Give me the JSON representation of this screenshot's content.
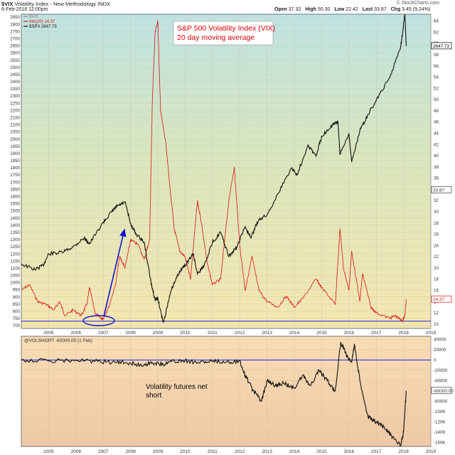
{
  "header": {
    "symbol": "$VIX",
    "title": "Volatility Index - New Methodology",
    "exchange": "INDX",
    "date": "6-Feb-2018 12:00pm",
    "brand": "© StockCharts.com",
    "ohlc": [
      {
        "label": "Open",
        "value": "37.32"
      },
      {
        "label": "High",
        "value": "50.30"
      },
      {
        "label": "Low",
        "value": "22.42"
      },
      {
        "label": "Last",
        "value": "33.87"
      },
      {
        "label": "Chg",
        "value": "3.45 (9.24%)"
      }
    ]
  },
  "chart_data": [
    {
      "type": "line",
      "title": "S&P 500 Volatility Index (VIX)",
      "subtitle": "20 day moving average",
      "legend": [
        {
          "text": "$VIX",
          "color": "#888888"
        },
        {
          "text": "MA(20) 14.37",
          "color": "#dd1111"
        },
        {
          "text": "$SPX 2647.73",
          "color": "#111111"
        }
      ],
      "x_ticks": [
        "2005",
        "2006",
        "2007",
        "2008",
        "2009",
        "2010",
        "2011",
        "2012",
        "2013",
        "2014",
        "2015",
        "2016",
        "2017",
        "2018",
        "2019"
      ],
      "left_axis_ticks": [
        700,
        750,
        800,
        850,
        900,
        950,
        1000,
        1050,
        1100,
        1150,
        1200,
        1250,
        1300,
        1350,
        1400,
        1450,
        1500,
        1550,
        1600,
        1650,
        1700,
        1750,
        1800,
        1850,
        1900,
        1950,
        2000,
        2050,
        2100,
        2150,
        2200,
        2250,
        2300,
        2350,
        2400,
        2450,
        2500,
        2550,
        2600,
        2650,
        2700,
        2750,
        2800,
        2850
      ],
      "right_axis_ticks": [
        10,
        12,
        14,
        16,
        18,
        20,
        22,
        24,
        26,
        28,
        30,
        32,
        34,
        36,
        38,
        40,
        42,
        44,
        46,
        48,
        50,
        52,
        54,
        56,
        58,
        60,
        62,
        64
      ],
      "ylim_left": [
        680,
        2870
      ],
      "ylim_right": [
        9.2,
        65.2
      ],
      "value_flags": [
        {
          "text": "2647.73",
          "axis": "left",
          "value": 2647.73,
          "color": "#000000"
        },
        {
          "text": "33.87",
          "axis": "right",
          "value": 33.87,
          "color": "#333333"
        },
        {
          "text": "14.37",
          "axis": "right",
          "value": 14.37,
          "color": "#dd1111"
        }
      ],
      "reference_line": {
        "axis": "right",
        "value": 10.5,
        "color": "#2222dd"
      },
      "series": [
        {
          "name": "$SPX",
          "axis": "left",
          "color": "#111111",
          "points": [
            [
              2004.0,
              1130
            ],
            [
              2004.5,
              1090
            ],
            [
              2004.8,
              1120
            ],
            [
              2005.0,
              1200
            ],
            [
              2005.5,
              1210
            ],
            [
              2005.9,
              1250
            ],
            [
              2006.3,
              1310
            ],
            [
              2006.5,
              1270
            ],
            [
              2007.0,
              1420
            ],
            [
              2007.3,
              1490
            ],
            [
              2007.5,
              1530
            ],
            [
              2007.8,
              1560
            ],
            [
              2008.0,
              1410
            ],
            [
              2008.2,
              1340
            ],
            [
              2008.5,
              1280
            ],
            [
              2008.75,
              1000
            ],
            [
              2008.9,
              880
            ],
            [
              2009.0,
              890
            ],
            [
              2009.2,
              720
            ],
            [
              2009.5,
              950
            ],
            [
              2009.8,
              1080
            ],
            [
              2010.0,
              1120
            ],
            [
              2010.3,
              1200
            ],
            [
              2010.45,
              1060
            ],
            [
              2010.7,
              1120
            ],
            [
              2011.0,
              1280
            ],
            [
              2011.3,
              1350
            ],
            [
              2011.6,
              1180
            ],
            [
              2011.9,
              1250
            ],
            [
              2012.2,
              1390
            ],
            [
              2012.4,
              1310
            ],
            [
              2012.7,
              1440
            ],
            [
              2013.0,
              1470
            ],
            [
              2013.4,
              1620
            ],
            [
              2013.9,
              1800
            ],
            [
              2014.1,
              1750
            ],
            [
              2014.5,
              1960
            ],
            [
              2014.8,
              1880
            ],
            [
              2015.0,
              2020
            ],
            [
              2015.4,
              2100
            ],
            [
              2015.6,
              2120
            ],
            [
              2015.67,
              1890
            ],
            [
              2016.0,
              2040
            ],
            [
              2016.1,
              1840
            ],
            [
              2016.4,
              2060
            ],
            [
              2016.7,
              2170
            ],
            [
              2017.0,
              2270
            ],
            [
              2017.5,
              2430
            ],
            [
              2017.9,
              2650
            ],
            [
              2018.05,
              2870
            ],
            [
              2018.1,
              2647.73
            ]
          ]
        },
        {
          "name": "MA(20)",
          "axis": "right",
          "color": "#dd1111",
          "points": [
            [
              2004.0,
              16
            ],
            [
              2004.3,
              17
            ],
            [
              2004.6,
              14
            ],
            [
              2004.9,
              13.5
            ],
            [
              2005.2,
              12.5
            ],
            [
              2005.4,
              14
            ],
            [
              2005.6,
              11.5
            ],
            [
              2005.9,
              12.5
            ],
            [
              2006.2,
              11.5
            ],
            [
              2006.4,
              13.5
            ],
            [
              2006.5,
              16.5
            ],
            [
              2006.7,
              12
            ],
            [
              2006.9,
              11
            ],
            [
              2007.0,
              11
            ],
            [
              2007.2,
              13
            ],
            [
              2007.45,
              17
            ],
            [
              2007.6,
              22
            ],
            [
              2007.8,
              20
            ],
            [
              2008.0,
              25
            ],
            [
              2008.3,
              24
            ],
            [
              2008.5,
              21.5
            ],
            [
              2008.7,
              25
            ],
            [
              2008.8,
              50
            ],
            [
              2008.9,
              62
            ],
            [
              2009.0,
              64
            ],
            [
              2009.1,
              48
            ],
            [
              2009.3,
              42
            ],
            [
              2009.45,
              34
            ],
            [
              2009.6,
              27
            ],
            [
              2009.8,
              23
            ],
            [
              2010.0,
              22
            ],
            [
              2010.2,
              18
            ],
            [
              2010.45,
              32
            ],
            [
              2010.6,
              28
            ],
            [
              2010.8,
              21
            ],
            [
              2011.0,
              17
            ],
            [
              2011.3,
              18
            ],
            [
              2011.6,
              32
            ],
            [
              2011.8,
              38
            ],
            [
              2012.0,
              24
            ],
            [
              2012.2,
              16
            ],
            [
              2012.45,
              22
            ],
            [
              2012.7,
              16
            ],
            [
              2013.0,
              14
            ],
            [
              2013.4,
              13
            ],
            [
              2013.7,
              15
            ],
            [
              2014.0,
              13
            ],
            [
              2014.3,
              14.5
            ],
            [
              2014.8,
              18
            ],
            [
              2015.0,
              16.5
            ],
            [
              2015.5,
              13.5
            ],
            [
              2015.67,
              27
            ],
            [
              2015.8,
              20
            ],
            [
              2016.0,
              16
            ],
            [
              2016.1,
              23
            ],
            [
              2016.4,
              14
            ],
            [
              2016.5,
              19
            ],
            [
              2016.8,
              13
            ],
            [
              2017.0,
              12
            ],
            [
              2017.5,
              11
            ],
            [
              2017.7,
              11.5
            ],
            [
              2017.95,
              10.5
            ],
            [
              2018.05,
              11.5
            ],
            [
              2018.1,
              14.37
            ]
          ]
        }
      ]
    },
    {
      "type": "line",
      "legend": [
        {
          "text": "@VOLSHORT -60000.00 (1 Feb)",
          "color": "#333333"
        }
      ],
      "annotation": "Volatility futures net\nshort",
      "x_ticks": [
        "2005",
        "2006",
        "2007",
        "2008",
        "2009",
        "2010",
        "2011",
        "2012",
        "2013",
        "2014",
        "2015",
        "2016",
        "2017",
        "2018",
        "2019"
      ],
      "right_axis_ticks": [
        {
          "value": 40000,
          "label": "40000"
        },
        {
          "value": 20000,
          "label": "20000"
        },
        {
          "value": 0,
          "label": "0"
        },
        {
          "value": -20000,
          "label": "-20000"
        },
        {
          "value": -40000,
          "label": "-40000"
        },
        {
          "value": -80000,
          "label": "-80000"
        },
        {
          "value": -100000,
          "label": "-100K"
        },
        {
          "value": -120000,
          "label": "-120K"
        },
        {
          "value": -140000,
          "label": "-140K"
        },
        {
          "value": -160000,
          "label": "-160K"
        }
      ],
      "ylim": [
        -168000,
        46000
      ],
      "value_flag": {
        "text": "-60000.00",
        "value": -60000,
        "color": "#333333"
      },
      "reference_line": {
        "value": 0,
        "color": "#2222dd"
      },
      "series": [
        {
          "name": "@VOLSHORT",
          "color": "#111111",
          "points": [
            [
              2004.0,
              0
            ],
            [
              2005.0,
              -2000
            ],
            [
              2006.0,
              -1000
            ],
            [
              2006.8,
              -3000
            ],
            [
              2007.5,
              -5000
            ],
            [
              2008.0,
              -6000
            ],
            [
              2008.4,
              -10000
            ],
            [
              2008.8,
              -5000
            ],
            [
              2009.2,
              -8000
            ],
            [
              2009.5,
              -3000
            ],
            [
              2010.0,
              -1000
            ],
            [
              2010.5,
              -5000
            ],
            [
              2011.0,
              -3000
            ],
            [
              2011.5,
              -4000
            ],
            [
              2012.0,
              -2000
            ],
            [
              2012.2,
              -30000
            ],
            [
              2012.5,
              -60000
            ],
            [
              2012.8,
              -80000
            ],
            [
              2013.0,
              -40000
            ],
            [
              2013.3,
              -50000
            ],
            [
              2013.6,
              -45000
            ],
            [
              2014.0,
              -55000
            ],
            [
              2014.3,
              -30000
            ],
            [
              2014.6,
              -50000
            ],
            [
              2014.9,
              -20000
            ],
            [
              2015.2,
              -40000
            ],
            [
              2015.5,
              -60000
            ],
            [
              2015.7,
              35000
            ],
            [
              2015.9,
              10000
            ],
            [
              2016.1,
              -5000
            ],
            [
              2016.2,
              30000
            ],
            [
              2016.4,
              -40000
            ],
            [
              2016.7,
              -110000
            ],
            [
              2017.0,
              -120000
            ],
            [
              2017.3,
              -130000
            ],
            [
              2017.6,
              -150000
            ],
            [
              2017.9,
              -165000
            ],
            [
              2018.0,
              -140000
            ],
            [
              2018.1,
              -60000
            ]
          ]
        }
      ]
    }
  ],
  "annotations": {
    "main_title": "S&P 500 Volatility Index (VIX)",
    "main_subtitle": "20 day moving average",
    "lower_text_line1": "Volatility futures net",
    "lower_text_line2": "short"
  }
}
